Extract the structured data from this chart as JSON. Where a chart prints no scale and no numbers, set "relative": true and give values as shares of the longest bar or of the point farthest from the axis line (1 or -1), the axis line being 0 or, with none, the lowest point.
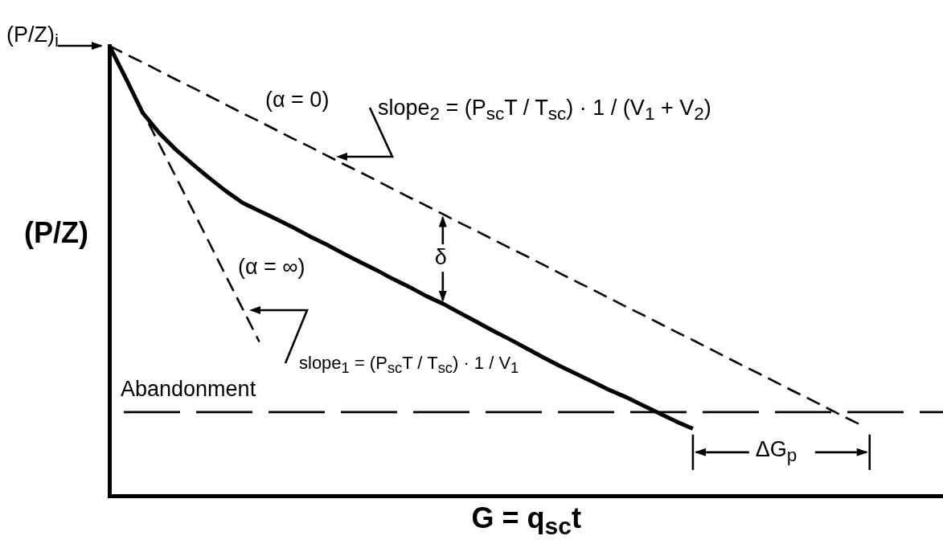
{
  "chart_data": {
    "type": "line",
    "relative": true,
    "xlabel": "G = q$_{sc}$t",
    "ylabel": "(P/Z)",
    "categories": [
      null,
      null,
      null,
      null,
      null,
      null,
      null,
      null,
      null,
      null,
      null,
      null,
      null,
      null,
      null,
      null,
      null,
      null,
      null,
      null,
      null,
      null,
      null,
      null,
      null,
      null,
      null,
      null,
      null,
      null,
      null,
      null,
      null,
      null,
      null,
      null,
      null,
      null,
      null,
      null,
      null,
      null,
      null,
      null,
      null,
      null,
      null,
      null,
      null,
      null,
      null
    ],
    "series": [
      {
        "color": "#000000",
        "line_style": "dashed",
        "values": [
          1.0,
          0.981,
          0.963,
          0.944,
          0.925,
          0.907,
          0.888,
          0.869,
          0.85,
          0.832,
          0.813,
          0.794,
          0.776,
          0.757,
          0.738,
          0.72,
          0.701,
          0.682,
          0.663,
          0.645,
          0.626,
          0.607,
          0.589,
          0.57,
          0.551,
          0.533,
          0.514,
          0.495,
          0.476,
          0.458,
          0.439,
          0.42,
          0.402,
          0.383,
          0.364,
          0.346,
          0.327,
          0.308,
          0.289,
          0.271,
          0.252,
          0.233,
          0.215,
          0.196,
          0.177,
          0.159,
          null,
          null,
          null,
          null,
          null
        ]
      },
      {
        "color": "#000000",
        "line_style": "dashed",
        "values": [
          1.0,
          0.927,
          0.854,
          0.781,
          0.708,
          0.635,
          0.562,
          0.488,
          0.415,
          0.342,
          null,
          null,
          null,
          null,
          null,
          null,
          null,
          null,
          null,
          null,
          null,
          null,
          null,
          null,
          null,
          null,
          null,
          null,
          null,
          null,
          null,
          null,
          null,
          null,
          null,
          null,
          null,
          null,
          null,
          null,
          null,
          null,
          null,
          null,
          null,
          null,
          null,
          null,
          null,
          null,
          null
        ]
      },
      {
        "color": "#000000",
        "line_style": "solid",
        "values": [
          1.0,
          0.927,
          0.851,
          0.806,
          0.769,
          0.737,
          0.706,
          0.677,
          0.651,
          0.633,
          0.615,
          0.597,
          0.577,
          0.559,
          0.539,
          0.52,
          0.502,
          0.482,
          0.464,
          0.444,
          0.427,
          0.407,
          0.387,
          0.367,
          0.348,
          0.328,
          0.308,
          0.289,
          0.271,
          0.253,
          0.235,
          0.219,
          0.201,
          0.183,
          0.165,
          0.149,
          null,
          null,
          null,
          null,
          null,
          null,
          null,
          null,
          null,
          null,
          null,
          null,
          null,
          null,
          null
        ]
      }
    ],
    "ref_lines": [
      {
        "axis": "y",
        "value": 0.186,
        "label": "Abandonment",
        "line_style": "dashed"
      }
    ],
    "annotations": [
      "(P/Z)$_{i}$",
      "(α = 0)",
      "slope$_{2}$ = (P$_{sc}$T / T$_{sc}$) · 1 / (V$_{1}$ + V$_{2}$)",
      "(α = ∞)",
      "slope$_{1}$ = (P$_{sc}$T / T$_{sc}$) · 1 / V$_{1}$",
      "δ",
      "ΔG$_{p}$"
    ],
    "marker": "none",
    "legend": false,
    "grid": false
  }
}
